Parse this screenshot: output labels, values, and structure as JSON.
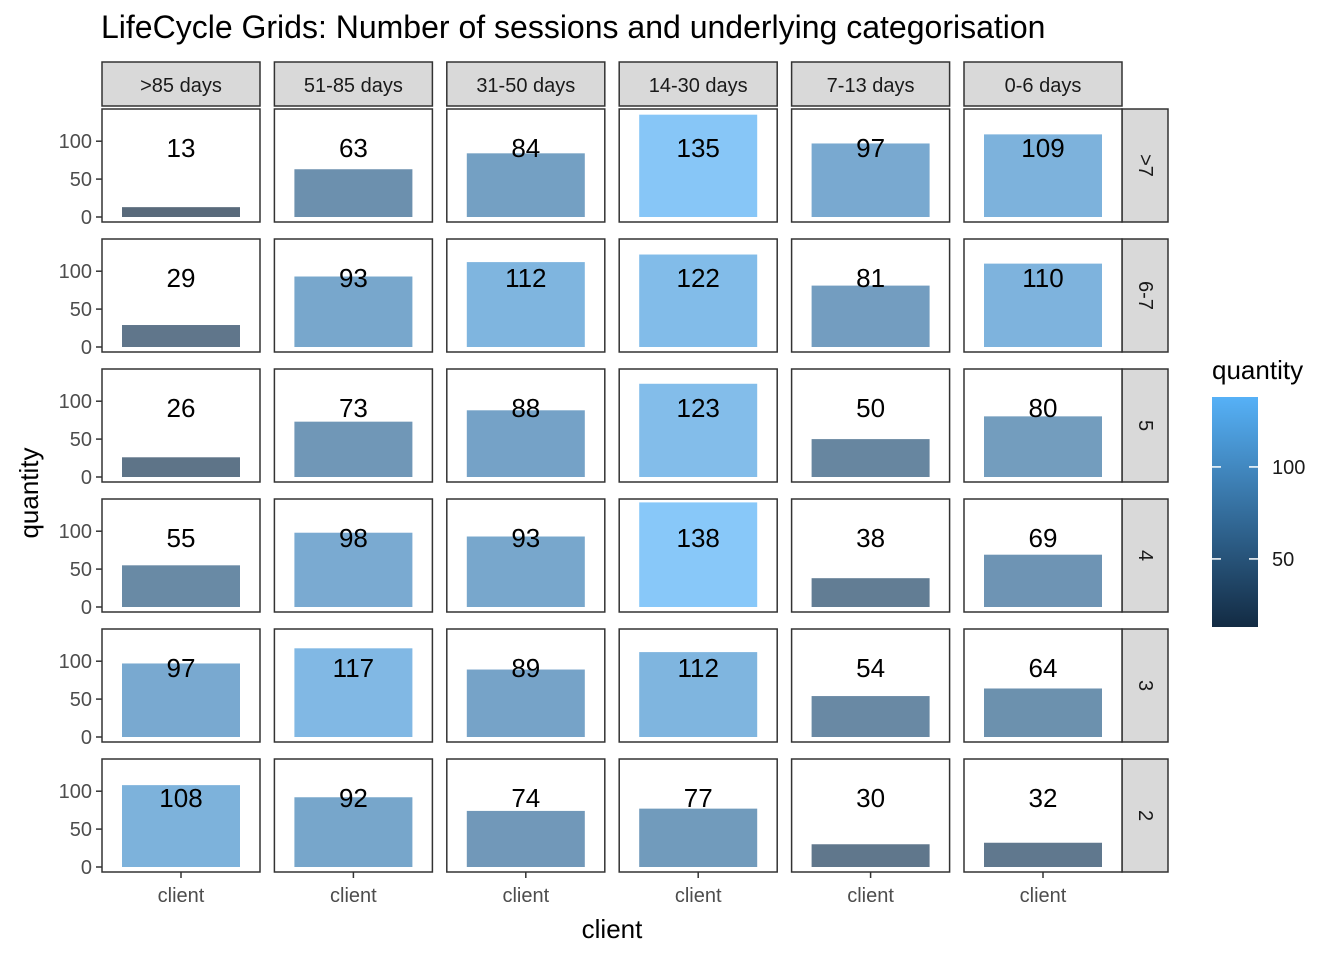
{
  "chart_data": {
    "type": "bar",
    "title": "LifeCycle Grids: Number of sessions and underlying categorisation",
    "xlabel": "client",
    "ylabel": "quantity",
    "x_category": "client",
    "ylim": [
      0,
      145
    ],
    "y_ticks": [
      0,
      50,
      100
    ],
    "column_facets": [
      ">85 days",
      "51-85 days",
      "31-50 days",
      "14-30 days",
      "7-13 days",
      "0-6 days"
    ],
    "row_facets": [
      ">7",
      "6-7",
      "5",
      "4",
      "3",
      "2"
    ],
    "values": [
      [
        13,
        63,
        84,
        135,
        97,
        109
      ],
      [
        29,
        93,
        112,
        122,
        81,
        110
      ],
      [
        26,
        73,
        88,
        123,
        50,
        80
      ],
      [
        55,
        98,
        93,
        138,
        38,
        69
      ],
      [
        97,
        117,
        89,
        112,
        54,
        64
      ],
      [
        108,
        92,
        74,
        77,
        30,
        32
      ]
    ],
    "legend": {
      "title": "quantity",
      "ticks": [
        50,
        100
      ],
      "range": [
        13,
        138
      ],
      "low_color": "#132b43",
      "high_color": "#56b1f7"
    },
    "bar_alpha": 0.7,
    "grid": false,
    "theme": "bw"
  }
}
